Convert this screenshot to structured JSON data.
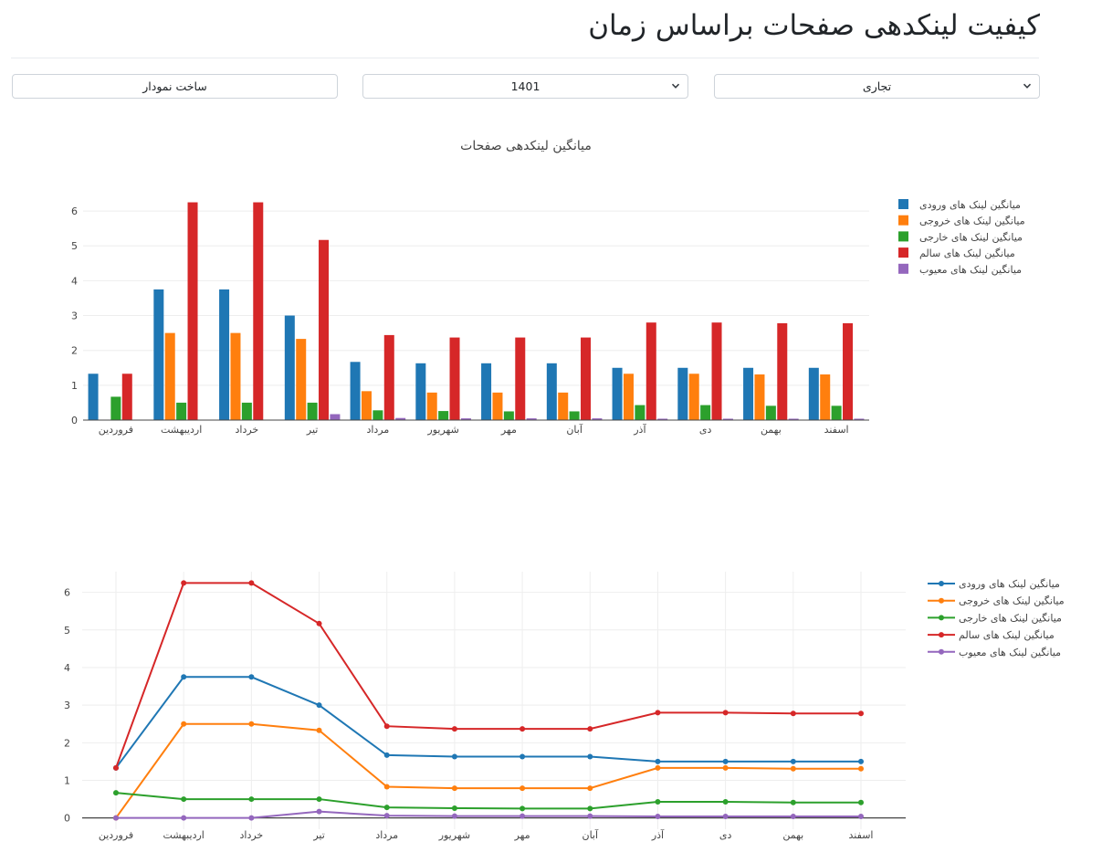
{
  "page": {
    "title": "کیفیت لینکدهی صفحات براساس زمان"
  },
  "controls": {
    "category_select": {
      "value": "تجاری"
    },
    "year_select": {
      "value": "1401"
    },
    "build_button": {
      "label": "ساخت نمودار"
    }
  },
  "icons": {
    "select_arrow": "chevron-down-icon"
  },
  "chart_data": [
    {
      "type": "bar",
      "title": "میانگین لینکدهی صفحات",
      "xlabel": "",
      "ylabel": "",
      "ylim": [
        0,
        6.5
      ],
      "yticks": [
        0,
        1,
        2,
        3,
        4,
        5,
        6
      ],
      "grid": true,
      "legend": "top-right",
      "categories": [
        "فروردین",
        "اردیبهشت",
        "خرداد",
        "تیر",
        "مرداد",
        "شهریور",
        "مهر",
        "آبان",
        "آذر",
        "دی",
        "بهمن",
        "اسفند"
      ],
      "series": [
        {
          "name": "میانگین لینک های ورودی",
          "color": "#1f77b4",
          "values": [
            1.33,
            3.75,
            3.75,
            3.0,
            1.67,
            1.63,
            1.63,
            1.63,
            1.5,
            1.5,
            1.5,
            1.5
          ]
        },
        {
          "name": "میانگین لینک های خروجی",
          "color": "#ff7f0e",
          "values": [
            0,
            2.5,
            2.5,
            2.33,
            0.83,
            0.79,
            0.79,
            0.79,
            1.33,
            1.33,
            1.31,
            1.31
          ]
        },
        {
          "name": "میانگین لینک های خارجی",
          "color": "#2ca02c",
          "values": [
            0.67,
            0.5,
            0.5,
            0.5,
            0.28,
            0.26,
            0.25,
            0.25,
            0.43,
            0.43,
            0.41,
            0.41
          ]
        },
        {
          "name": "میانگین لینک های سالم",
          "color": "#d62728",
          "values": [
            1.33,
            6.25,
            6.25,
            5.17,
            2.44,
            2.37,
            2.37,
            2.37,
            2.8,
            2.8,
            2.78,
            2.78
          ]
        },
        {
          "name": "میانگین لینک های معیوب",
          "color": "#9467bd",
          "values": [
            0,
            0,
            0,
            0.17,
            0.06,
            0.05,
            0.05,
            0.05,
            0.04,
            0.04,
            0.04,
            0.04
          ]
        }
      ]
    },
    {
      "type": "line",
      "title": "",
      "xlabel": "",
      "ylabel": "",
      "ylim": [
        -0.3,
        6.55
      ],
      "yticks": [
        0,
        1,
        2,
        3,
        4,
        5,
        6
      ],
      "grid": true,
      "legend": "top-right",
      "categories": [
        "فروردین",
        "اردیبهشت",
        "خرداد",
        "تیر",
        "مرداد",
        "شهریور",
        "مهر",
        "آبان",
        "آذر",
        "دی",
        "بهمن",
        "اسفند"
      ],
      "series": [
        {
          "name": "میانگین لینک های ورودی",
          "color": "#1f77b4",
          "values": [
            1.33,
            3.75,
            3.75,
            3.0,
            1.67,
            1.63,
            1.63,
            1.63,
            1.5,
            1.5,
            1.5,
            1.5
          ]
        },
        {
          "name": "میانگین لینک های خروجی",
          "color": "#ff7f0e",
          "values": [
            0,
            2.5,
            2.5,
            2.33,
            0.83,
            0.79,
            0.79,
            0.79,
            1.33,
            1.33,
            1.31,
            1.31
          ]
        },
        {
          "name": "میانگین لینک های خارجی",
          "color": "#2ca02c",
          "values": [
            0.67,
            0.5,
            0.5,
            0.5,
            0.28,
            0.26,
            0.25,
            0.25,
            0.43,
            0.43,
            0.41,
            0.41
          ]
        },
        {
          "name": "میانگین لینک های سالم",
          "color": "#d62728",
          "values": [
            1.33,
            6.25,
            6.25,
            5.17,
            2.44,
            2.37,
            2.37,
            2.37,
            2.8,
            2.8,
            2.78,
            2.78
          ]
        },
        {
          "name": "میانگین لینک های معیوب",
          "color": "#9467bd",
          "values": [
            0,
            0,
            0,
            0.17,
            0.06,
            0.05,
            0.05,
            0.05,
            0.04,
            0.04,
            0.04,
            0.04
          ]
        }
      ]
    }
  ]
}
